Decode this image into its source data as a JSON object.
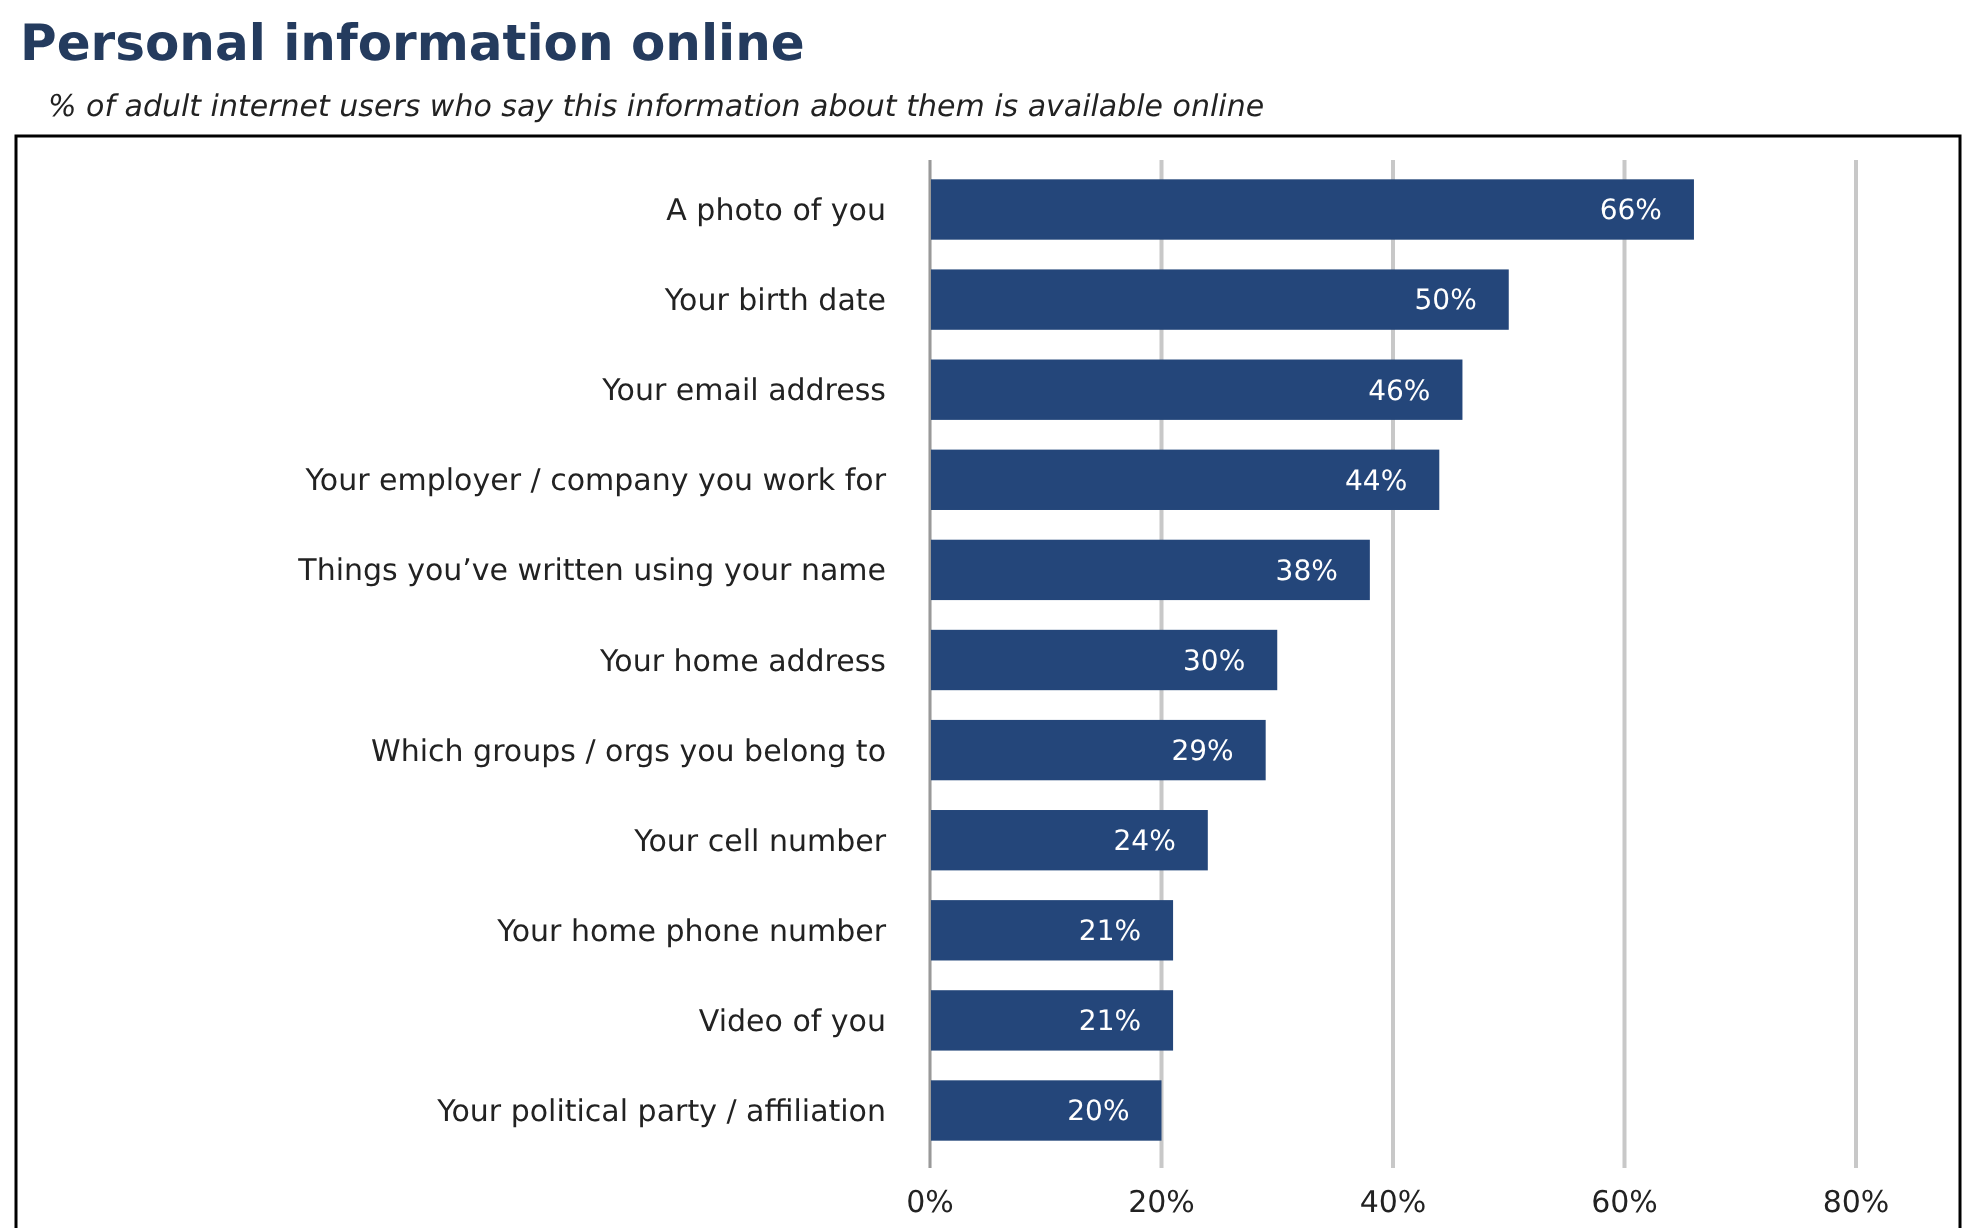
{
  "chart_data": {
    "type": "bar",
    "orientation": "horizontal",
    "title": "Personal information online",
    "subtitle": "% of adult internet users who say this information about them is available online",
    "categories": [
      "A photo of you",
      "Your birth date",
      "Your email address",
      "Your employer / company you work for",
      "Things you’ve written using your name",
      "Your home address",
      "Which groups / orgs you belong to",
      "Your cell number",
      "Your home phone number",
      "Video of you",
      "Your political party / affiliation"
    ],
    "values": [
      66,
      50,
      46,
      44,
      38,
      30,
      29,
      24,
      21,
      21,
      20
    ],
    "value_labels": [
      "66%",
      "50%",
      "46%",
      "44%",
      "38%",
      "30%",
      "29%",
      "24%",
      "21%",
      "21%",
      "20%"
    ],
    "color": "#24467a",
    "xlim": [
      0,
      80
    ],
    "xticks": [
      {
        "value": 0,
        "label": "0%"
      },
      {
        "value": 20,
        "label": "20%"
      },
      {
        "value": 40,
        "label": "40%"
      },
      {
        "value": 60,
        "label": "60%"
      },
      {
        "value": 80,
        "label": "80%"
      }
    ],
    "grid": "x"
  }
}
